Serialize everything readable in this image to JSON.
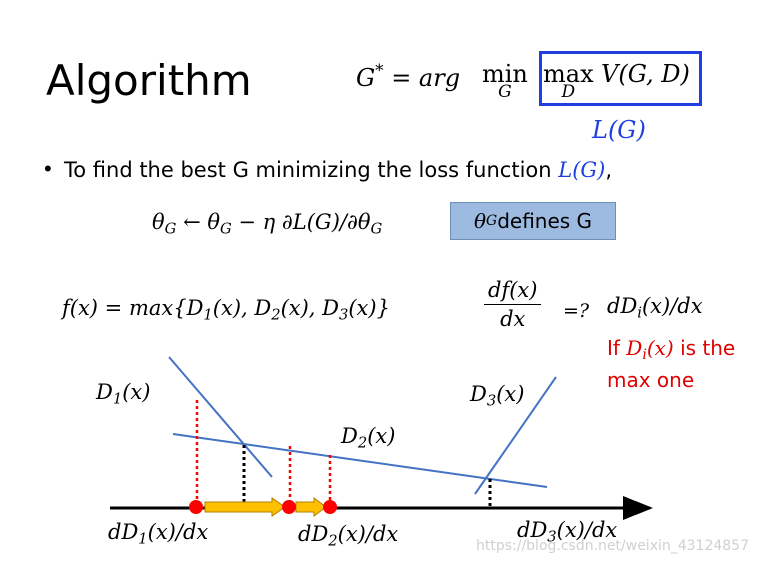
{
  "slide": {
    "title": "Algorithm",
    "objective": {
      "lhs": "G",
      "lhs_star": "*",
      "eq": " = arg ",
      "min": "min",
      "min_sub": "G",
      "max": "max",
      "max_sub": "D",
      "rest": "V(G, D)"
    },
    "boxed_label": "L(G)",
    "bullet": {
      "dot": "•",
      "text": "To find the best G minimizing the loss function ",
      "loss": "L(G)",
      "comma": ","
    },
    "update_rule": {
      "theta": "θ",
      "sub": "G",
      "arrow": " ← θ",
      "sub2": "G",
      "rest": " − η ∂L(G)/∂θ",
      "sub3": "G"
    },
    "defines_box": {
      "theta": "θ",
      "sub": "G",
      "text": " defines G"
    },
    "f_def": {
      "lhs": "f(x) = max{D",
      "s1": "1",
      "m1": "(x), D",
      "s2": "2",
      "m2": "(x), D",
      "s3": "3",
      "m3": "(x)}"
    },
    "derivative": {
      "num": "df(x)",
      "den": "dx",
      "eq": "=?",
      "rhs": "dD",
      "rhs_sub": "i",
      "rhs_rest": "(x)/dx"
    },
    "condition": {
      "if": "If ",
      "d": "D",
      "sub": "i",
      "x": "(x)",
      "rest1": " is the",
      "rest2": "max one"
    },
    "labels": {
      "d1": {
        "d": "D",
        "sub": "1",
        "x": "(x)"
      },
      "d2": {
        "d": "D",
        "sub": "2",
        "x": "(x)"
      },
      "d3": {
        "d": "D",
        "sub": "3",
        "x": "(x)"
      },
      "dd1": {
        "d": "dD",
        "sub": "1",
        "x": "(x)/dx"
      },
      "dd2": {
        "d": "dD",
        "sub": "2",
        "x": "(x)/dx"
      },
      "dd3": {
        "d": "dD",
        "sub": "3",
        "x": "(x)/dx"
      }
    },
    "watermark": "https://blog.csdn.net/weixin_43124857",
    "colors": {
      "line": "#4472c4",
      "highlight_box": "#1f3fe0",
      "dot": "#ff0000",
      "arrow_fill": "#ffc000",
      "arrow_stroke": "#b08000",
      "box_fill": "#9dbbe0"
    }
  }
}
